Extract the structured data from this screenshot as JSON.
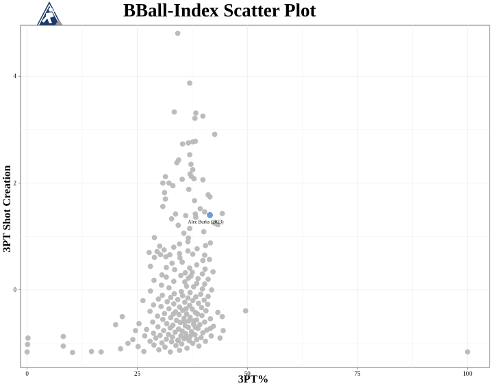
{
  "title": "BBall-Index Scatter Plot",
  "logo": {
    "icon": "bball-index-logo-icon",
    "colors": [
      "#1a3a6b",
      "#9a9a9a",
      "#ffffff"
    ]
  },
  "chart_data": {
    "type": "scatter",
    "title": "BBall-Index Scatter Plot",
    "xlabel": "3PT%",
    "ylabel": "3PT Shot Creation",
    "xlim": [
      -1.5,
      105
    ],
    "ylim": [
      -1.45,
      4.95
    ],
    "x_ticks": [
      0,
      25,
      50,
      75,
      100
    ],
    "y_ticks": [
      0,
      2,
      4
    ],
    "grid": true,
    "colors": {
      "point": "#b8b8b8",
      "highlight": "#6a9fd4",
      "grid": "#ebebeb"
    },
    "highlight": {
      "x": 41.5,
      "y": 1.4,
      "label": "Alec Burks (2023)"
    },
    "points": [
      [
        34.2,
        4.8
      ],
      [
        36.9,
        3.87
      ],
      [
        33.4,
        3.33
      ],
      [
        38.3,
        3.31
      ],
      [
        39.9,
        3.25
      ],
      [
        38.1,
        3.21
      ],
      [
        42.6,
        2.91
      ],
      [
        38.2,
        2.78
      ],
      [
        37.6,
        2.77
      ],
      [
        36.6,
        2.75
      ],
      [
        35.3,
        2.73
      ],
      [
        36.9,
        2.53
      ],
      [
        34.4,
        2.43
      ],
      [
        34.0,
        2.38
      ],
      [
        37.2,
        2.35
      ],
      [
        37.6,
        2.25
      ],
      [
        37.0,
        2.17
      ],
      [
        37.3,
        2.12
      ],
      [
        31.4,
        2.12
      ],
      [
        37.9,
        2.08
      ],
      [
        39.9,
        2.06
      ],
      [
        35.2,
        2.07
      ],
      [
        32.2,
        2.0
      ],
      [
        30.8,
        2.0
      ],
      [
        33.1,
        1.95
      ],
      [
        36.7,
        1.88
      ],
      [
        31.2,
        1.82
      ],
      [
        41.1,
        1.78
      ],
      [
        41.5,
        1.74
      ],
      [
        31.4,
        1.7
      ],
      [
        38.0,
        1.67
      ],
      [
        30.8,
        1.56
      ],
      [
        39.3,
        1.52
      ],
      [
        40.3,
        1.46
      ],
      [
        38.2,
        1.42
      ],
      [
        44.3,
        1.43
      ],
      [
        33.7,
        1.42
      ],
      [
        36.0,
        1.39
      ],
      [
        38.3,
        1.36
      ],
      [
        32.8,
        1.33
      ],
      [
        42.6,
        1.25
      ],
      [
        43.3,
        1.22
      ],
      [
        34.3,
        1.21
      ],
      [
        36.9,
        1.15
      ],
      [
        40.1,
        1.09
      ],
      [
        35.6,
        1.06
      ],
      [
        28.9,
        0.98
      ],
      [
        36.6,
        0.97
      ],
      [
        36.5,
        0.9
      ],
      [
        41.6,
        0.88
      ],
      [
        34.6,
        0.86
      ],
      [
        40.5,
        0.83
      ],
      [
        30.1,
        0.82
      ],
      [
        33.3,
        0.8
      ],
      [
        38.6,
        0.77
      ],
      [
        31.1,
        0.75
      ],
      [
        36.5,
        0.73
      ],
      [
        29.5,
        0.72
      ],
      [
        27.7,
        0.7
      ],
      [
        34.6,
        0.68
      ],
      [
        32.4,
        0.66
      ],
      [
        30.3,
        0.66
      ],
      [
        37.6,
        0.67
      ],
      [
        40.3,
        0.65
      ],
      [
        31.5,
        0.62
      ],
      [
        28.9,
        0.61
      ],
      [
        34.7,
        0.6
      ],
      [
        41.4,
        0.57
      ],
      [
        39.9,
        0.55
      ],
      [
        35.2,
        0.52
      ],
      [
        32.9,
        0.5
      ],
      [
        38.5,
        0.47
      ],
      [
        28.0,
        0.44
      ],
      [
        31.6,
        0.42
      ],
      [
        36.9,
        0.41
      ],
      [
        40.4,
        0.39
      ],
      [
        33.5,
        0.38
      ],
      [
        42.2,
        0.34
      ],
      [
        37.5,
        0.33
      ],
      [
        35.9,
        0.32
      ],
      [
        39.8,
        0.3
      ],
      [
        30.6,
        0.28
      ],
      [
        34.9,
        0.27
      ],
      [
        37.2,
        0.26
      ],
      [
        31.6,
        0.24
      ],
      [
        36.6,
        0.22
      ],
      [
        38.8,
        0.21
      ],
      [
        41.1,
        0.2
      ],
      [
        28.8,
        0.18
      ],
      [
        33.3,
        0.16
      ],
      [
        35.8,
        0.15
      ],
      [
        38.5,
        0.12
      ],
      [
        40.3,
        0.11
      ],
      [
        30.5,
        0.09
      ],
      [
        36.2,
        0.07
      ],
      [
        37.8,
        0.06
      ],
      [
        32.2,
        0.04
      ],
      [
        39.8,
        0.02
      ],
      [
        41.9,
        0.0
      ],
      [
        28.0,
        -0.02
      ],
      [
        35.0,
        -0.03
      ],
      [
        37.0,
        -0.05
      ],
      [
        33.4,
        -0.07
      ],
      [
        39.4,
        -0.08
      ],
      [
        30.7,
        -0.1
      ],
      [
        35.3,
        -0.11
      ],
      [
        41.1,
        -0.12
      ],
      [
        38.3,
        -0.13
      ],
      [
        32.6,
        -0.14
      ],
      [
        36.5,
        -0.15
      ],
      [
        29.8,
        -0.17
      ],
      [
        34.2,
        -0.18
      ],
      [
        40.2,
        -0.19
      ],
      [
        37.6,
        -0.2
      ],
      [
        26.3,
        -0.2
      ],
      [
        31.8,
        -0.22
      ],
      [
        35.8,
        -0.23
      ],
      [
        38.9,
        -0.25
      ],
      [
        33.3,
        -0.26
      ],
      [
        41.0,
        -0.27
      ],
      [
        28.7,
        -0.28
      ],
      [
        36.9,
        -0.29
      ],
      [
        30.4,
        -0.31
      ],
      [
        34.6,
        -0.32
      ],
      [
        39.6,
        -0.33
      ],
      [
        32.2,
        -0.35
      ],
      [
        37.5,
        -0.36
      ],
      [
        35.3,
        -0.38
      ],
      [
        40.6,
        -0.39
      ],
      [
        27.9,
        -0.4
      ],
      [
        33.7,
        -0.41
      ],
      [
        38.2,
        -0.42
      ],
      [
        49.6,
        -0.39
      ],
      [
        43.3,
        -0.42
      ],
      [
        31.2,
        -0.44
      ],
      [
        36.2,
        -0.45
      ],
      [
        34.5,
        -0.46
      ],
      [
        39.7,
        -0.48
      ],
      [
        29.6,
        -0.49
      ],
      [
        44.3,
        -0.5
      ],
      [
        37.0,
        -0.51
      ],
      [
        32.6,
        -0.52
      ],
      [
        35.6,
        -0.53
      ],
      [
        41.6,
        -0.54
      ],
      [
        30.8,
        -0.55
      ],
      [
        38.5,
        -0.56
      ],
      [
        33.9,
        -0.57
      ],
      [
        36.7,
        -0.58
      ],
      [
        21.6,
        -0.5
      ],
      [
        40.3,
        -0.6
      ],
      [
        28.5,
        -0.6
      ],
      [
        34.8,
        -0.61
      ],
      [
        31.7,
        -0.63
      ],
      [
        37.8,
        -0.64
      ],
      [
        25.4,
        -0.63
      ],
      [
        39.2,
        -0.65
      ],
      [
        33.1,
        -0.66
      ],
      [
        35.9,
        -0.67
      ],
      [
        42.3,
        -0.68
      ],
      [
        29.7,
        -0.69
      ],
      [
        20.1,
        -0.65
      ],
      [
        36.6,
        -0.7
      ],
      [
        32.5,
        -0.71
      ],
      [
        38.8,
        -0.72
      ],
      [
        34.4,
        -0.73
      ],
      [
        27.1,
        -0.74
      ],
      [
        40.8,
        -0.75
      ],
      [
        31.0,
        -0.76
      ],
      [
        35.2,
        -0.77
      ],
      [
        44.5,
        -0.76
      ],
      [
        37.3,
        -0.78
      ],
      [
        24.6,
        -0.76
      ],
      [
        33.6,
        -0.79
      ],
      [
        39.9,
        -0.8
      ],
      [
        28.7,
        -0.81
      ],
      [
        36.0,
        -0.82
      ],
      [
        32.1,
        -0.83
      ],
      [
        38.1,
        -0.84
      ],
      [
        30.2,
        -0.85
      ],
      [
        34.9,
        -0.86
      ],
      [
        41.8,
        -0.86
      ],
      [
        26.7,
        -0.86
      ],
      [
        37.0,
        -0.87
      ],
      [
        33.0,
        -0.88
      ],
      [
        39.5,
        -0.89
      ],
      [
        29.2,
        -0.9
      ],
      [
        35.6,
        -0.91
      ],
      [
        43.8,
        -0.9
      ],
      [
        31.6,
        -0.92
      ],
      [
        38.5,
        -0.93
      ],
      [
        24.0,
        -0.93
      ],
      [
        34.2,
        -0.94
      ],
      [
        36.8,
        -0.95
      ],
      [
        27.9,
        -0.96
      ],
      [
        40.5,
        -0.96
      ],
      [
        32.8,
        -0.97
      ],
      [
        30.6,
        -0.99
      ],
      [
        37.6,
        -1.0
      ],
      [
        22.9,
        -1.0
      ],
      [
        35.1,
        -1.01
      ],
      [
        28.8,
        -1.03
      ],
      [
        33.8,
        -1.04
      ],
      [
        39.0,
        -1.05
      ],
      [
        31.3,
        -1.07
      ],
      [
        25.2,
        -1.06
      ],
      [
        36.3,
        -1.09
      ],
      [
        21.2,
        -1.1
      ],
      [
        29.9,
        -1.12
      ],
      [
        34.6,
        -1.13
      ],
      [
        26.5,
        -1.15
      ],
      [
        32.5,
        -1.16
      ],
      [
        14.6,
        -1.15
      ],
      [
        16.8,
        -1.16
      ],
      [
        10.3,
        -1.17
      ],
      [
        0.2,
        -0.9
      ],
      [
        0.1,
        -1.02
      ],
      [
        0.0,
        -1.16
      ],
      [
        8.2,
        -0.87
      ],
      [
        8.2,
        -1.05
      ],
      [
        41.6,
        -0.72
      ],
      [
        38.7,
        -0.45
      ],
      [
        100.0,
        -1.16
      ],
      [
        37.6,
        -0.82
      ],
      [
        35.7,
        -0.6
      ],
      [
        36.0,
        -0.9
      ],
      [
        37.8,
        -0.58
      ],
      [
        38.2,
        -0.7
      ],
      [
        34.3,
        -0.95
      ],
      [
        33.2,
        -0.45
      ],
      [
        36.1,
        -0.35
      ]
    ]
  }
}
